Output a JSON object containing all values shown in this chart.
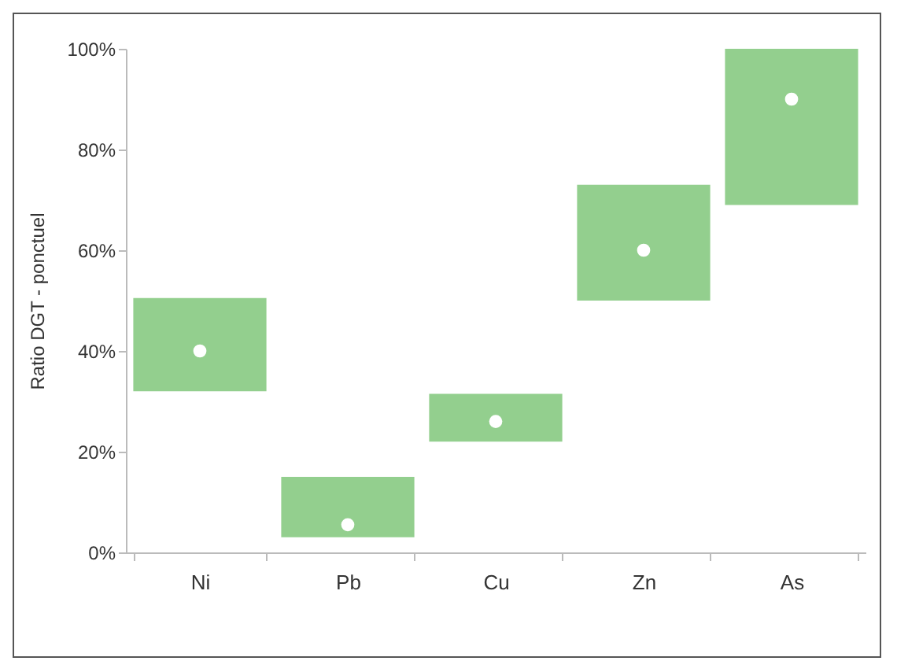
{
  "chart_data": {
    "type": "bar",
    "ylabel": "Ratio DGT - ponctuel",
    "categories": [
      "Ni",
      "Pb",
      "Cu",
      "Zn",
      "As"
    ],
    "series": [
      {
        "type": "bar",
        "color": "#93cf8e",
        "base": [
          32,
          3,
          22,
          50,
          69
        ],
        "values": [
          18.5,
          12,
          9.5,
          23,
          31
        ]
      },
      {
        "type": "scatter",
        "color": "#ffffff",
        "x": [
          "Ni",
          "Pb",
          "Cu",
          "Zn",
          "As"
        ],
        "values": [
          40,
          5.5,
          26,
          60,
          90
        ]
      }
    ],
    "ylim": [
      0,
      100
    ],
    "yticks": [
      {
        "value": 0,
        "label": "0%"
      },
      {
        "value": 20,
        "label": "20%"
      },
      {
        "value": 40,
        "label": "40%"
      },
      {
        "value": 60,
        "label": "60%"
      },
      {
        "value": 80,
        "label": "80%"
      },
      {
        "value": 100,
        "label": "100%"
      }
    ],
    "marker": "circle"
  }
}
